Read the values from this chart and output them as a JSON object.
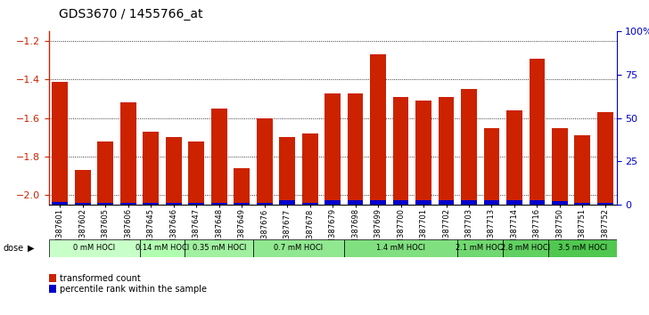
{
  "title": "GDS3670 / 1455766_at",
  "samples": [
    "GSM387601",
    "GSM387602",
    "GSM387605",
    "GSM387606",
    "GSM387645",
    "GSM387646",
    "GSM387647",
    "GSM387648",
    "GSM387649",
    "GSM387676",
    "GSM387677",
    "GSM387678",
    "GSM387679",
    "GSM387698",
    "GSM387699",
    "GSM387700",
    "GSM387701",
    "GSM387702",
    "GSM387703",
    "GSM387713",
    "GSM387714",
    "GSM387716",
    "GSM387750",
    "GSM387751",
    "GSM387752"
  ],
  "transformed_count": [
    -1.41,
    -1.87,
    -1.72,
    -1.52,
    -1.67,
    -1.7,
    -1.72,
    -1.55,
    -1.86,
    -1.6,
    -1.7,
    -1.68,
    -1.47,
    -1.47,
    -1.27,
    -1.49,
    -1.51,
    -1.49,
    -1.45,
    -1.65,
    -1.56,
    -1.29,
    -1.65,
    -1.69,
    -1.57
  ],
  "percentile_rank": [
    6,
    5,
    5,
    5,
    5,
    5,
    5,
    5,
    4,
    5,
    10,
    5,
    10,
    10,
    10,
    10,
    10,
    10,
    10,
    10,
    10,
    10,
    8,
    5,
    5
  ],
  "dose_groups": [
    {
      "label": "0 mM HOCl",
      "start": 0,
      "end": 4,
      "color": "#c8ffc8"
    },
    {
      "label": "0.14 mM HOCl",
      "start": 4,
      "end": 6,
      "color": "#b0ffb0"
    },
    {
      "label": "0.35 mM HOCl",
      "start": 6,
      "end": 9,
      "color": "#a0f0a0"
    },
    {
      "label": "0.7 mM HOCl",
      "start": 9,
      "end": 13,
      "color": "#90e890"
    },
    {
      "label": "1.4 mM HOCl",
      "start": 13,
      "end": 18,
      "color": "#80e080"
    },
    {
      "label": "2.1 mM HOCl",
      "start": 18,
      "end": 20,
      "color": "#70d870"
    },
    {
      "label": "2.8 mM HOCl",
      "start": 20,
      "end": 22,
      "color": "#60d060"
    },
    {
      "label": "3.5 mM HOCl",
      "start": 22,
      "end": 25,
      "color": "#50c850"
    }
  ],
  "ylim": [
    -2.05,
    -1.15
  ],
  "yticks": [
    -2.0,
    -1.8,
    -1.6,
    -1.4,
    -1.2
  ],
  "y2lim": [
    0,
    100
  ],
  "y2ticks": [
    0,
    25,
    50,
    75,
    100
  ],
  "bar_color": "#cc2200",
  "percentile_color": "#0000cc",
  "bar_width": 0.7
}
